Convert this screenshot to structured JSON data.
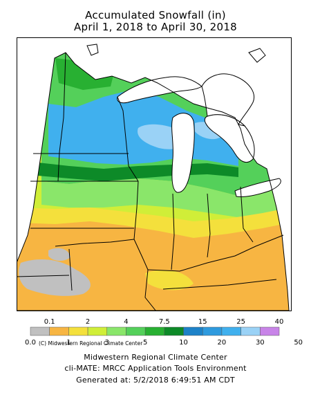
{
  "title": {
    "line1": "Accumulated Snowfall (in)",
    "line2": "April 1, 2018 to April 30, 2018"
  },
  "map": {
    "credit": "(C) Midwestern Regional Climate Center",
    "colors": {
      "background": "#ffffff",
      "lakes": "#ffffff",
      "borders": "#000000"
    }
  },
  "legend": {
    "top_labels": [
      "0.1",
      "2",
      "4",
      "7.5",
      "15",
      "25",
      "40"
    ],
    "bottom_labels": [
      "0.0",
      "1",
      "3",
      "5",
      "10",
      "20",
      "30",
      "50"
    ],
    "colors": [
      "#c0c0c0",
      "#f7b542",
      "#f4e03c",
      "#d0ee38",
      "#8ae66a",
      "#54d05a",
      "#28b032",
      "#0d8a28",
      "#1d82c8",
      "#2e9ade",
      "#40b0ee",
      "#9ad2f6",
      "#c884e8"
    ]
  },
  "footer": {
    "line1": "Midwestern Regional Climate Center",
    "line2": "cli-MATE: MRCC Application Tools Environment",
    "line3": "Generated at: 5/2/2018 6:49:51 AM CDT"
  }
}
